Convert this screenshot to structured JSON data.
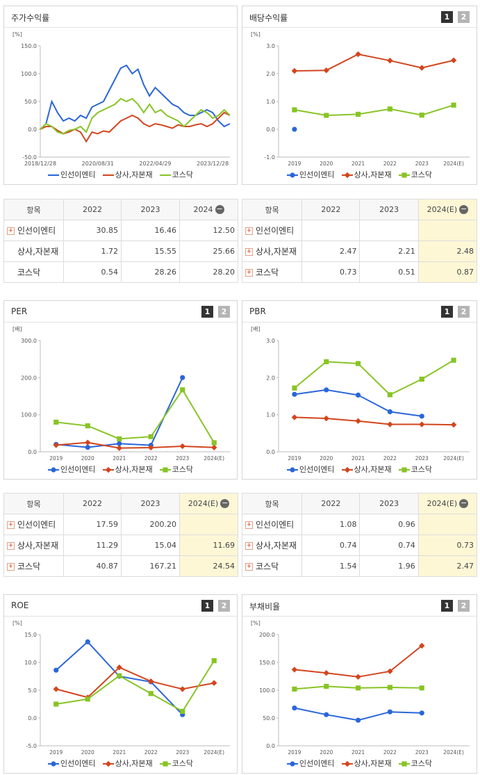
{
  "chart_data": [
    {
      "type": "line",
      "title": "주가수익률",
      "unit": "[%]",
      "categories": [
        "2018/12/28",
        null,
        null,
        null,
        null,
        null,
        null,
        null,
        null,
        null,
        "2020/08/31",
        null,
        null,
        null,
        null,
        null,
        null,
        null,
        null,
        null,
        "2022/04/29",
        null,
        null,
        null,
        null,
        null,
        null,
        null,
        null,
        null,
        "2023/12/28",
        null,
        null,
        null
      ],
      "ylim": [
        -50,
        150
      ],
      "yticks": [
        {
          "value": -50,
          "label": "-50.0"
        },
        {
          "value": 0,
          "label": "0.0"
        },
        {
          "value": 50,
          "label": "50.0"
        },
        {
          "value": 100,
          "label": "100.0"
        },
        {
          "value": 150,
          "label": "150.0"
        }
      ],
      "markers": false,
      "series": [
        {
          "name": "인선이엔티",
          "color": "#2a66d9",
          "marker": "circle",
          "values": [
            0,
            10,
            50,
            30,
            15,
            20,
            15,
            25,
            20,
            40,
            45,
            50,
            70,
            90,
            110,
            115,
            100,
            108,
            80,
            60,
            75,
            65,
            55,
            45,
            40,
            30,
            25,
            25,
            30,
            35,
            30,
            15,
            5,
            10
          ]
        },
        {
          "name": "상사,자본재",
          "color": "#d2451e",
          "marker": "diamond",
          "values": [
            0,
            5,
            5,
            -2,
            -8,
            -5,
            0,
            -5,
            -22,
            -5,
            -8,
            -3,
            -5,
            5,
            15,
            20,
            25,
            20,
            10,
            5,
            10,
            8,
            5,
            2,
            8,
            5,
            5,
            8,
            10,
            5,
            10,
            20,
            30,
            25
          ]
        },
        {
          "name": "코스닥",
          "color": "#88c425",
          "marker": "square",
          "values": [
            0,
            10,
            5,
            -5,
            -8,
            -2,
            0,
            5,
            -5,
            20,
            30,
            35,
            40,
            45,
            55,
            50,
            55,
            45,
            30,
            45,
            30,
            35,
            25,
            20,
            15,
            5,
            15,
            25,
            35,
            30,
            20,
            25,
            35,
            25
          ]
        }
      ]
    },
    {
      "type": "line",
      "title": "배당수익률",
      "buttons": [
        "1",
        "2"
      ],
      "unit": "[%]",
      "categories": [
        "2019",
        "2020",
        "2021",
        "2022",
        "2023",
        "2024(E)"
      ],
      "ylim": [
        -1,
        3
      ],
      "yticks": [
        {
          "value": -1,
          "label": "-1.0"
        },
        {
          "value": 0,
          "label": "0.0"
        },
        {
          "value": 1,
          "label": "1.0"
        },
        {
          "value": 2,
          "label": "2.0"
        },
        {
          "value": 3,
          "label": "3.0"
        }
      ],
      "markers": true,
      "series": [
        {
          "name": "인선이엔티",
          "color": "#2a66d9",
          "marker": "circle",
          "values": [
            0,
            null,
            null,
            null,
            null,
            null
          ]
        },
        {
          "name": "상사,자본재",
          "color": "#d2451e",
          "marker": "diamond",
          "values": [
            2.1,
            2.12,
            2.7,
            2.47,
            2.21,
            2.48
          ]
        },
        {
          "name": "코스닥",
          "color": "#88c425",
          "marker": "square",
          "values": [
            0.7,
            0.5,
            0.54,
            0.73,
            0.51,
            0.87
          ]
        }
      ]
    },
    {
      "type": "line",
      "title": "PER",
      "buttons": [
        "1",
        "2"
      ],
      "unit": "[배]",
      "categories": [
        "2019",
        "2020",
        "2021",
        "2022",
        "2023",
        "2024(E)"
      ],
      "ylim": [
        0,
        300
      ],
      "yticks": [
        {
          "value": 0,
          "label": "0.0"
        },
        {
          "value": 100,
          "label": "100.0"
        },
        {
          "value": 200,
          "label": "200.0"
        },
        {
          "value": 300,
          "label": "300.0"
        }
      ],
      "markers": true,
      "series": [
        {
          "name": "인선이엔티",
          "color": "#2a66d9",
          "marker": "circle",
          "values": [
            20,
            12,
            22,
            17.59,
            200.2,
            null
          ]
        },
        {
          "name": "상사,자본재",
          "color": "#d2451e",
          "marker": "diamond",
          "values": [
            18,
            25,
            10,
            11.29,
            15.04,
            11.69
          ]
        },
        {
          "name": "코스닥",
          "color": "#88c425",
          "marker": "square",
          "values": [
            80,
            70,
            35,
            40.87,
            167.21,
            24.54
          ]
        }
      ]
    },
    {
      "type": "line",
      "title": "PBR",
      "buttons": [
        "1",
        "2"
      ],
      "unit": "[배]",
      "categories": [
        "2019",
        "2020",
        "2021",
        "2022",
        "2023",
        "2024(E)"
      ],
      "ylim": [
        0,
        3
      ],
      "yticks": [
        {
          "value": 0,
          "label": "0.0"
        },
        {
          "value": 1,
          "label": "1.0"
        },
        {
          "value": 2,
          "label": "2.0"
        },
        {
          "value": 3,
          "label": "3.0"
        }
      ],
      "markers": true,
      "series": [
        {
          "name": "인선이엔티",
          "color": "#2a66d9",
          "marker": "circle",
          "values": [
            1.55,
            1.67,
            1.53,
            1.08,
            0.96,
            null
          ]
        },
        {
          "name": "상사,자본재",
          "color": "#d2451e",
          "marker": "diamond",
          "values": [
            0.93,
            0.9,
            0.83,
            0.74,
            0.74,
            0.73
          ]
        },
        {
          "name": "코스닥",
          "color": "#88c425",
          "marker": "square",
          "values": [
            1.72,
            2.43,
            2.38,
            1.54,
            1.96,
            2.47
          ]
        }
      ]
    },
    {
      "type": "line",
      "title": "ROE",
      "buttons": [
        "1",
        "2"
      ],
      "unit": "[%]",
      "categories": [
        "2019",
        "2020",
        "2021",
        "2022",
        "2023",
        "2024(E)"
      ],
      "ylim": [
        -5,
        15
      ],
      "yticks": [
        {
          "value": -5,
          "label": "-5.0"
        },
        {
          "value": 0,
          "label": "0.0"
        },
        {
          "value": 5,
          "label": "5.0"
        },
        {
          "value": 10,
          "label": "10.0"
        },
        {
          "value": 15,
          "label": "15.0"
        }
      ],
      "markers": true,
      "series": [
        {
          "name": "인선이엔티",
          "color": "#2a66d9",
          "marker": "circle",
          "values": [
            8.6,
            13.7,
            7.5,
            6.5,
            0.6,
            null
          ]
        },
        {
          "name": "상사,자본재",
          "color": "#d2451e",
          "marker": "diamond",
          "values": [
            5.2,
            3.7,
            9.1,
            6.6,
            5.2,
            6.3
          ]
        },
        {
          "name": "코스닥",
          "color": "#88c425",
          "marker": "square",
          "values": [
            2.5,
            3.4,
            7.6,
            4.4,
            1.2,
            10.3
          ]
        }
      ]
    },
    {
      "type": "line",
      "title": "부채비율",
      "buttons": [
        "1",
        "2"
      ],
      "unit": "[%]",
      "categories": [
        "2019",
        "2020",
        "2021",
        "2022",
        "2023",
        "2024(E)"
      ],
      "ylim": [
        0,
        200
      ],
      "yticks": [
        {
          "value": 0,
          "label": "0.0"
        },
        {
          "value": 50,
          "label": "50.0"
        },
        {
          "value": 100,
          "label": "100.0"
        },
        {
          "value": 150,
          "label": "150.0"
        },
        {
          "value": 200,
          "label": "200.0"
        }
      ],
      "markers": true,
      "series": [
        {
          "name": "인선이엔티",
          "color": "#2a66d9",
          "marker": "circle",
          "values": [
            68,
            56,
            46,
            61,
            59,
            null
          ]
        },
        {
          "name": "상사,자본재",
          "color": "#d2451e",
          "marker": "diamond",
          "values": [
            137,
            131,
            124,
            134,
            180,
            null
          ]
        },
        {
          "name": "코스닥",
          "color": "#88c425",
          "marker": "square",
          "values": [
            102,
            107,
            104,
            105,
            104,
            null
          ]
        }
      ]
    }
  ],
  "tables": [
    {
      "headers": [
        "항목",
        "2022",
        "2023",
        "2024"
      ],
      "highlight_last_column": false,
      "rows": [
        {
          "label": "인선이엔티",
          "expandable": true,
          "cells": [
            "30.85",
            "16.46",
            "12.50"
          ]
        },
        {
          "label": "상사,자본재",
          "expandable": false,
          "cells": [
            "1.72",
            "15.55",
            "25.66"
          ]
        },
        {
          "label": "코스닥",
          "expandable": false,
          "cells": [
            "0.54",
            "28.26",
            "28.20"
          ]
        }
      ]
    },
    {
      "headers": [
        "항목",
        "2022",
        "2023",
        "2024(E)"
      ],
      "highlight_last_column": true,
      "rows": [
        {
          "label": "인선이엔티",
          "expandable": true,
          "cells": [
            null,
            null,
            null
          ]
        },
        {
          "label": "상사,자본재",
          "expandable": true,
          "cells": [
            "2.47",
            "2.21",
            "2.48"
          ]
        },
        {
          "label": "코스닥",
          "expandable": true,
          "cells": [
            "0.73",
            "0.51",
            "0.87"
          ]
        }
      ]
    },
    {
      "headers": [
        "항목",
        "2022",
        "2023",
        "2024(E)"
      ],
      "highlight_last_column": true,
      "rows": [
        {
          "label": "인선이엔티",
          "expandable": true,
          "cells": [
            "17.59",
            "200.20",
            null
          ]
        },
        {
          "label": "상사,자본재",
          "expandable": true,
          "cells": [
            "11.29",
            "15.04",
            "11.69"
          ]
        },
        {
          "label": "코스닥",
          "expandable": true,
          "cells": [
            "40.87",
            "167.21",
            "24.54"
          ]
        }
      ]
    },
    {
      "headers": [
        "항목",
        "2022",
        "2023",
        "2024(E)"
      ],
      "highlight_last_column": true,
      "rows": [
        {
          "label": "인선이엔티",
          "expandable": true,
          "cells": [
            "1.08",
            "0.96",
            null
          ]
        },
        {
          "label": "상사,자본재",
          "expandable": true,
          "cells": [
            "0.74",
            "0.74",
            "0.73"
          ]
        },
        {
          "label": "코스닥",
          "expandable": true,
          "cells": [
            "1.54",
            "1.96",
            "2.47"
          ]
        }
      ]
    }
  ]
}
